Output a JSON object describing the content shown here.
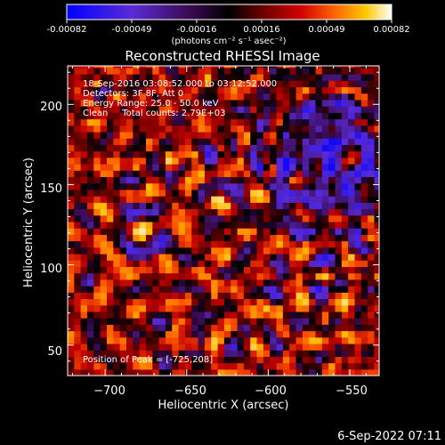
{
  "colorbar": {
    "tick_labels": [
      "-0.00082",
      "-0.00049",
      "-0.00016",
      "0.00016",
      "0.00049",
      "0.00082"
    ],
    "unit_label": "(photons cm⁻² s⁻¹ asec⁻²)"
  },
  "chart_data": {
    "type": "heatmap",
    "title": "Reconstructed RHESSI Image",
    "xlabel": "Heliocentric X (arcsec)",
    "ylabel": "Heliocentric Y (arcsec)",
    "xlim": [
      -723,
      -532
    ],
    "ylim": [
      31,
      224
    ],
    "x_ticks": [
      -700,
      -650,
      -600,
      -550
    ],
    "y_ticks": [
      50,
      100,
      150,
      200
    ],
    "x_tick_labels": [
      "−700",
      "−650",
      "−600",
      "−550"
    ],
    "y_tick_labels": [
      "50",
      "100",
      "150",
      "200"
    ],
    "value_range": [
      -0.00082,
      0.00082
    ],
    "pixel_size_arcsec": 4,
    "colormap": [
      "#0000ff",
      "#5a2bd6",
      "#3a0a50",
      "#000000",
      "#5a0000",
      "#c00000",
      "#ff5500",
      "#ffc000",
      "#ffffff"
    ],
    "peak": [
      -725,
      208
    ],
    "annotations": [
      "18-Sep-2016 03:08:52.000 to 03:12:52.000",
      "Detectors: 3F 8F, Att 0",
      "Energy Range: 25.0 - 50.0 keV",
      "Clean     Total counts: 2.79E+03"
    ],
    "peak_label": "Position of Peak = [-725,208]",
    "grid": false
  },
  "footer": {
    "timestamp": "6-Sep-2022 07:11"
  }
}
